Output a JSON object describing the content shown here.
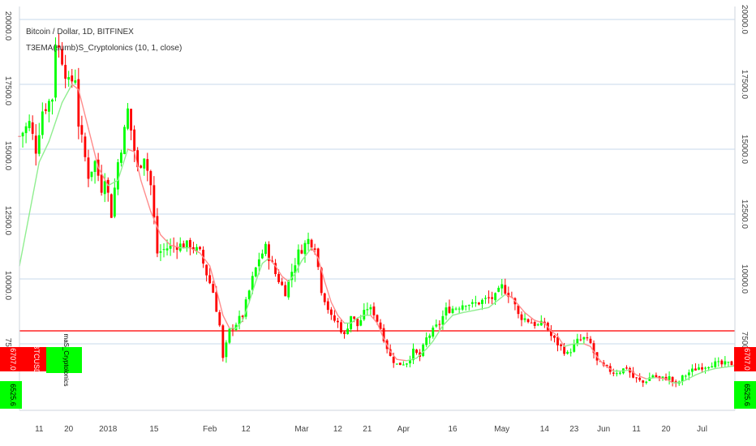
{
  "chart_data": {
    "type": "candlestick",
    "title": "Bitcoin / Dollar, 1D, BITFINEX",
    "indicator": "T3EMA(sumb)S_Cryptolonics (10, 1, close)",
    "indicator_short": "maS_Cryptolonics",
    "symbol_tag": "BTCUSD",
    "last_price": "6707.0",
    "indicator_value": "6525.6",
    "horizontal_line": 8000,
    "ylim": [
      5000,
      20500
    ],
    "y_ticks": [
      {
        "value": 20000,
        "label": "20000.0"
      },
      {
        "value": 17500,
        "label": "17500.0"
      },
      {
        "value": 15000,
        "label": "15000.0"
      },
      {
        "value": 12500,
        "label": "12500.0"
      },
      {
        "value": 10000,
        "label": "10000.0"
      },
      {
        "value": 7500,
        "label": "7500.0"
      }
    ],
    "x_ticks": [
      {
        "day": 11,
        "label": "11"
      },
      {
        "day": 20,
        "label": "20"
      },
      {
        "day": 32,
        "label": "2018"
      },
      {
        "day": 46,
        "label": "15"
      },
      {
        "day": 63,
        "label": "Feb"
      },
      {
        "day": 74,
        "label": "12"
      },
      {
        "day": 91,
        "label": "Mar"
      },
      {
        "day": 102,
        "label": "12"
      },
      {
        "day": 111,
        "label": "21"
      },
      {
        "day": 122,
        "label": "Apr"
      },
      {
        "day": 137,
        "label": "16"
      },
      {
        "day": 152,
        "label": "May"
      },
      {
        "day": 165,
        "label": "14"
      },
      {
        "day": 174,
        "label": "23"
      },
      {
        "day": 183,
        "label": "Jun"
      },
      {
        "day": 193,
        "label": "11"
      },
      {
        "day": 202,
        "label": "20"
      },
      {
        "day": 213,
        "label": "Jul"
      }
    ],
    "x_range": [
      5,
      223
    ],
    "price_path": [
      [
        5,
        15500
      ],
      [
        8,
        16000
      ],
      [
        10,
        15000
      ],
      [
        12,
        16500
      ],
      [
        15,
        17000
      ],
      [
        16,
        19200
      ],
      [
        18,
        18500
      ],
      [
        20,
        17500
      ],
      [
        22,
        17800
      ],
      [
        23,
        16000
      ],
      [
        26,
        14000
      ],
      [
        28,
        14500
      ],
      [
        30,
        13500
      ],
      [
        31,
        14000
      ],
      [
        33,
        12500
      ],
      [
        35,
        14500
      ],
      [
        37,
        15700
      ],
      [
        38,
        16500
      ],
      [
        41,
        14200
      ],
      [
        43,
        14800
      ],
      [
        45,
        13600
      ],
      [
        47,
        11000
      ],
      [
        50,
        11200
      ],
      [
        53,
        11300
      ],
      [
        57,
        11300
      ],
      [
        60,
        11000
      ],
      [
        62,
        10200
      ],
      [
        64,
        9500
      ],
      [
        66,
        8200
      ],
      [
        67,
        6900
      ],
      [
        69,
        8000
      ],
      [
        71,
        8300
      ],
      [
        73,
        8600
      ],
      [
        76,
        10000
      ],
      [
        78,
        10800
      ],
      [
        80,
        11200
      ],
      [
        83,
        10200
      ],
      [
        86,
        9500
      ],
      [
        88,
        10300
      ],
      [
        90,
        11000
      ],
      [
        93,
        11500
      ],
      [
        95,
        11300
      ],
      [
        97,
        9600
      ],
      [
        100,
        8500
      ],
      [
        102,
        8300
      ],
      [
        104,
        7800
      ],
      [
        106,
        8600
      ],
      [
        108,
        8200
      ],
      [
        111,
        8900
      ],
      [
        113,
        8700
      ],
      [
        115,
        8100
      ],
      [
        118,
        7000
      ],
      [
        120,
        6700
      ],
      [
        123,
        6800
      ],
      [
        125,
        7200
      ],
      [
        127,
        7000
      ],
      [
        129,
        7700
      ],
      [
        131,
        8000
      ],
      [
        133,
        8300
      ],
      [
        135,
        8800
      ],
      [
        138,
        8900
      ],
      [
        141,
        9100
      ],
      [
        143,
        9000
      ],
      [
        147,
        9200
      ],
      [
        150,
        9300
      ],
      [
        152,
        9700
      ],
      [
        155,
        9300
      ],
      [
        157,
        8600
      ],
      [
        160,
        8400
      ],
      [
        163,
        8200
      ],
      [
        165,
        8300
      ],
      [
        167,
        7800
      ],
      [
        169,
        7500
      ],
      [
        172,
        7100
      ],
      [
        175,
        7600
      ],
      [
        177,
        7700
      ],
      [
        179,
        7500
      ],
      [
        181,
        6800
      ],
      [
        183,
        6600
      ],
      [
        186,
        6400
      ],
      [
        188,
        6450
      ],
      [
        190,
        6600
      ],
      [
        192,
        6200
      ],
      [
        195,
        6000
      ],
      [
        198,
        6300
      ],
      [
        200,
        6150
      ],
      [
        203,
        6200
      ],
      [
        205,
        5900
      ],
      [
        207,
        6200
      ],
      [
        209,
        6400
      ],
      [
        212,
        6600
      ],
      [
        214,
        6650
      ],
      [
        216,
        6750
      ],
      [
        219,
        6700
      ],
      [
        223,
        6750
      ]
    ],
    "indicator_path": [
      [
        5,
        10500
      ],
      [
        8,
        12500
      ],
      [
        11,
        14500
      ],
      [
        14,
        15300
      ],
      [
        18,
        16800
      ],
      [
        21,
        17500
      ],
      [
        23,
        17300
      ],
      [
        26,
        15800
      ],
      [
        29,
        14300
      ],
      [
        32,
        13600
      ],
      [
        35,
        13800
      ],
      [
        38,
        15000
      ],
      [
        40,
        14900
      ],
      [
        42,
        13800
      ],
      [
        45,
        12600
      ],
      [
        48,
        11700
      ],
      [
        51,
        11300
      ],
      [
        54,
        11200
      ],
      [
        57,
        11200
      ],
      [
        60,
        11000
      ],
      [
        63,
        10500
      ],
      [
        65,
        9600
      ],
      [
        67,
        8600
      ],
      [
        69,
        8100
      ],
      [
        71,
        8100
      ],
      [
        73,
        8400
      ],
      [
        75,
        9100
      ],
      [
        77,
        9900
      ],
      [
        79,
        10600
      ],
      [
        81,
        10800
      ],
      [
        83,
        10500
      ],
      [
        85,
        10100
      ],
      [
        87,
        9900
      ],
      [
        89,
        10200
      ],
      [
        91,
        10700
      ],
      [
        94,
        11200
      ],
      [
        96,
        10800
      ],
      [
        98,
        9900
      ],
      [
        100,
        9100
      ],
      [
        102,
        8600
      ],
      [
        104,
        8300
      ],
      [
        106,
        8300
      ],
      [
        108,
        8500
      ],
      [
        110,
        8600
      ],
      [
        112,
        8600
      ],
      [
        114,
        8300
      ],
      [
        116,
        7700
      ],
      [
        118,
        7200
      ],
      [
        120,
        6900
      ],
      [
        123,
        6850
      ],
      [
        126,
        6950
      ],
      [
        129,
        7300
      ],
      [
        131,
        7600
      ],
      [
        134,
        8200
      ],
      [
        137,
        8600
      ],
      [
        140,
        8700
      ],
      [
        144,
        8800
      ],
      [
        148,
        8900
      ],
      [
        151,
        9200
      ],
      [
        153,
        9400
      ],
      [
        155,
        9300
      ],
      [
        157,
        9000
      ],
      [
        159,
        8700
      ],
      [
        162,
        8400
      ],
      [
        165,
        8300
      ],
      [
        167,
        8000
      ],
      [
        169,
        7800
      ],
      [
        171,
        7400
      ],
      [
        174,
        7500
      ],
      [
        177,
        7500
      ],
      [
        179,
        7400
      ],
      [
        181,
        7000
      ],
      [
        183,
        6700
      ],
      [
        186,
        6450
      ],
      [
        189,
        6450
      ],
      [
        191,
        6500
      ],
      [
        193,
        6300
      ],
      [
        196,
        6150
      ],
      [
        199,
        6200
      ],
      [
        202,
        6150
      ],
      [
        204,
        6000
      ],
      [
        206,
        6000
      ],
      [
        208,
        6100
      ],
      [
        211,
        6300
      ],
      [
        214,
        6450
      ],
      [
        217,
        6550
      ],
      [
        220,
        6600
      ],
      [
        223,
        6650
      ]
    ],
    "colors": {
      "up": "#00ff00",
      "down": "#ff0000",
      "indicator_up": "#90ee90",
      "indicator_down": "#ff8c8c",
      "hline": "#ff5a5a",
      "grid": "#e3ecf5",
      "tag_red": "#ff0000",
      "tag_green": "#00ff00"
    }
  }
}
